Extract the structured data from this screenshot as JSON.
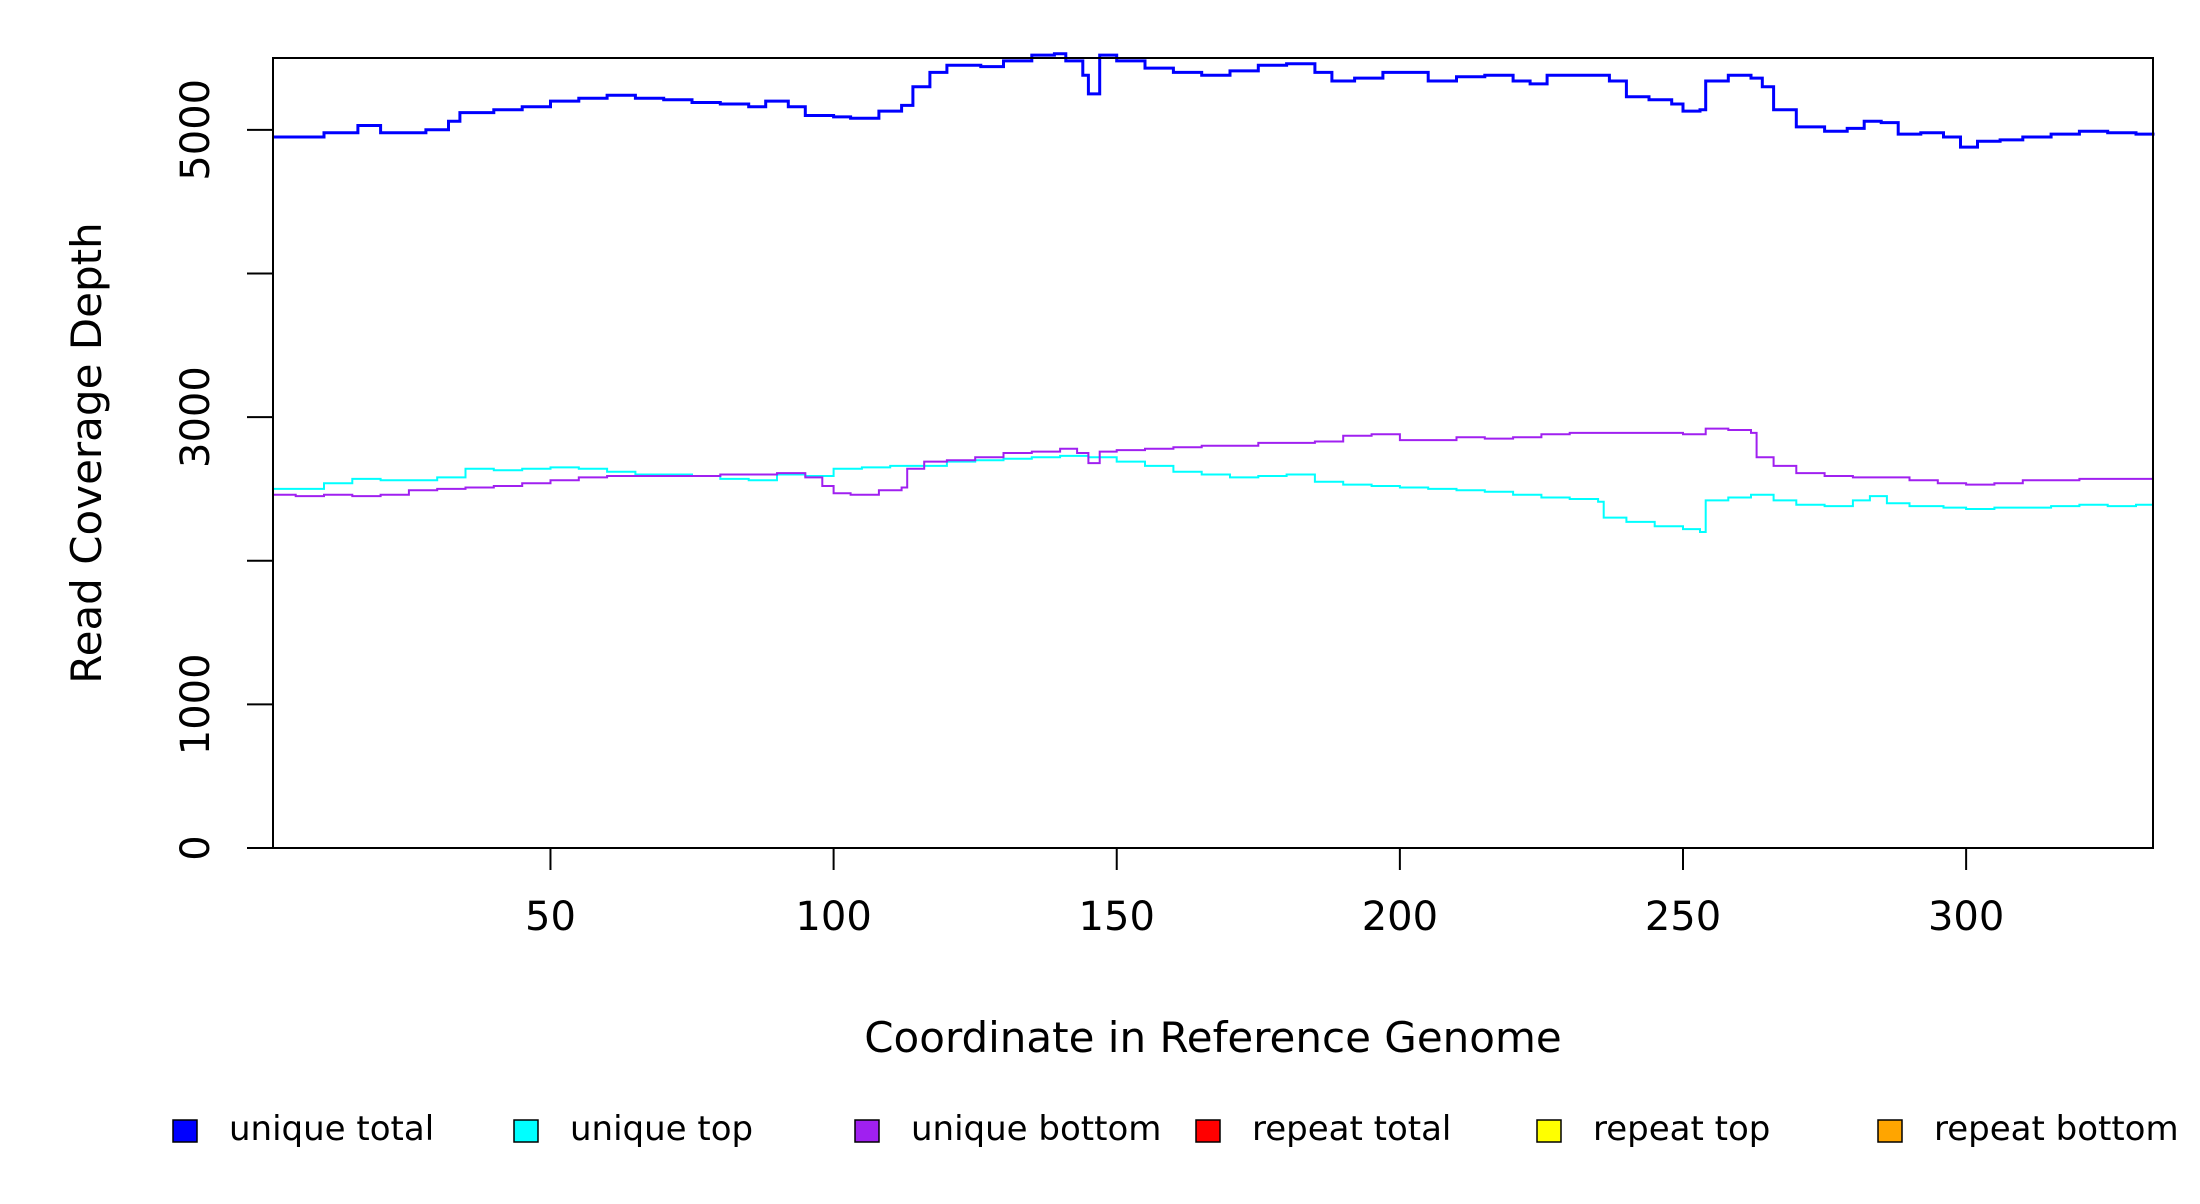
{
  "chart_data": {
    "type": "line",
    "title": "",
    "xlabel": "Coordinate in Reference Genome",
    "ylabel": "Read Coverage Depth",
    "xlim": [
      1,
      333
    ],
    "ylim": [
      0,
      5500
    ],
    "x_ticks": [
      50,
      100,
      150,
      200,
      250,
      300
    ],
    "y_ticks": [
      0,
      1000,
      2000,
      3000,
      4000,
      5000
    ],
    "y_tick_labels": [
      "0",
      "1000",
      "",
      "3000",
      "",
      "5000"
    ],
    "grid": false,
    "legend_position": "bottom",
    "series": [
      {
        "name": "unique total",
        "color": "#0000ff",
        "points": [
          [
            1,
            4950
          ],
          [
            10,
            4980
          ],
          [
            16,
            5030
          ],
          [
            20,
            4980
          ],
          [
            28,
            5000
          ],
          [
            32,
            5060
          ],
          [
            34,
            5120
          ],
          [
            40,
            5140
          ],
          [
            45,
            5160
          ],
          [
            50,
            5200
          ],
          [
            55,
            5220
          ],
          [
            60,
            5240
          ],
          [
            65,
            5220
          ],
          [
            70,
            5210
          ],
          [
            75,
            5190
          ],
          [
            80,
            5180
          ],
          [
            85,
            5160
          ],
          [
            88,
            5200
          ],
          [
            92,
            5160
          ],
          [
            95,
            5100
          ],
          [
            100,
            5090
          ],
          [
            103,
            5080
          ],
          [
            108,
            5130
          ],
          [
            112,
            5170
          ],
          [
            114,
            5300
          ],
          [
            117,
            5400
          ],
          [
            120,
            5450
          ],
          [
            126,
            5440
          ],
          [
            130,
            5480
          ],
          [
            135,
            5520
          ],
          [
            139,
            5530
          ],
          [
            141,
            5480
          ],
          [
            144,
            5380
          ],
          [
            145,
            5250
          ],
          [
            147,
            5520
          ],
          [
            150,
            5480
          ],
          [
            155,
            5430
          ],
          [
            160,
            5400
          ],
          [
            165,
            5380
          ],
          [
            170,
            5410
          ],
          [
            175,
            5450
          ],
          [
            180,
            5460
          ],
          [
            185,
            5400
          ],
          [
            188,
            5340
          ],
          [
            192,
            5360
          ],
          [
            197,
            5400
          ],
          [
            202,
            5400
          ],
          [
            205,
            5340
          ],
          [
            210,
            5370
          ],
          [
            215,
            5380
          ],
          [
            220,
            5340
          ],
          [
            223,
            5320
          ],
          [
            226,
            5380
          ],
          [
            230,
            5380
          ],
          [
            237,
            5340
          ],
          [
            240,
            5230
          ],
          [
            244,
            5210
          ],
          [
            248,
            5180
          ],
          [
            250,
            5130
          ],
          [
            253,
            5140
          ],
          [
            254,
            5340
          ],
          [
            258,
            5380
          ],
          [
            262,
            5360
          ],
          [
            264,
            5300
          ],
          [
            266,
            5140
          ],
          [
            270,
            5020
          ],
          [
            275,
            4990
          ],
          [
            277,
            4990
          ],
          [
            279,
            5010
          ],
          [
            282,
            5060
          ],
          [
            285,
            5050
          ],
          [
            288,
            4970
          ],
          [
            292,
            4980
          ],
          [
            296,
            4950
          ],
          [
            299,
            4880
          ],
          [
            302,
            4920
          ],
          [
            306,
            4930
          ],
          [
            310,
            4950
          ],
          [
            315,
            4970
          ],
          [
            320,
            4990
          ],
          [
            325,
            4980
          ],
          [
            330,
            4970
          ],
          [
            333,
            4960
          ]
        ]
      },
      {
        "name": "unique top",
        "color": "#00ffff",
        "points": [
          [
            1,
            2500
          ],
          [
            10,
            2540
          ],
          [
            15,
            2570
          ],
          [
            20,
            2560
          ],
          [
            30,
            2580
          ],
          [
            35,
            2640
          ],
          [
            40,
            2630
          ],
          [
            45,
            2640
          ],
          [
            50,
            2650
          ],
          [
            55,
            2640
          ],
          [
            60,
            2620
          ],
          [
            65,
            2600
          ],
          [
            70,
            2600
          ],
          [
            75,
            2590
          ],
          [
            80,
            2570
          ],
          [
            85,
            2560
          ],
          [
            90,
            2600
          ],
          [
            95,
            2590
          ],
          [
            100,
            2640
          ],
          [
            105,
            2650
          ],
          [
            110,
            2660
          ],
          [
            115,
            2660
          ],
          [
            120,
            2690
          ],
          [
            125,
            2700
          ],
          [
            130,
            2710
          ],
          [
            135,
            2720
          ],
          [
            140,
            2730
          ],
          [
            145,
            2720
          ],
          [
            150,
            2690
          ],
          [
            155,
            2660
          ],
          [
            160,
            2620
          ],
          [
            165,
            2600
          ],
          [
            170,
            2580
          ],
          [
            175,
            2590
          ],
          [
            180,
            2600
          ],
          [
            185,
            2550
          ],
          [
            190,
            2530
          ],
          [
            195,
            2520
          ],
          [
            200,
            2510
          ],
          [
            205,
            2500
          ],
          [
            210,
            2490
          ],
          [
            215,
            2480
          ],
          [
            220,
            2460
          ],
          [
            225,
            2440
          ],
          [
            230,
            2430
          ],
          [
            235,
            2410
          ],
          [
            236,
            2300
          ],
          [
            240,
            2270
          ],
          [
            245,
            2240
          ],
          [
            250,
            2220
          ],
          [
            253,
            2200
          ],
          [
            254,
            2420
          ],
          [
            258,
            2440
          ],
          [
            262,
            2460
          ],
          [
            266,
            2420
          ],
          [
            270,
            2390
          ],
          [
            275,
            2380
          ],
          [
            280,
            2420
          ],
          [
            283,
            2450
          ],
          [
            286,
            2400
          ],
          [
            290,
            2380
          ],
          [
            296,
            2370
          ],
          [
            300,
            2360
          ],
          [
            305,
            2370
          ],
          [
            310,
            2370
          ],
          [
            315,
            2380
          ],
          [
            320,
            2390
          ],
          [
            325,
            2380
          ],
          [
            330,
            2390
          ],
          [
            333,
            2390
          ]
        ]
      },
      {
        "name": "unique bottom",
        "color": "#a020f0",
        "points": [
          [
            1,
            2460
          ],
          [
            5,
            2450
          ],
          [
            10,
            2460
          ],
          [
            15,
            2450
          ],
          [
            20,
            2460
          ],
          [
            25,
            2490
          ],
          [
            30,
            2500
          ],
          [
            35,
            2510
          ],
          [
            40,
            2520
          ],
          [
            45,
            2540
          ],
          [
            50,
            2560
          ],
          [
            55,
            2580
          ],
          [
            60,
            2590
          ],
          [
            65,
            2590
          ],
          [
            70,
            2590
          ],
          [
            75,
            2590
          ],
          [
            80,
            2600
          ],
          [
            85,
            2600
          ],
          [
            90,
            2610
          ],
          [
            95,
            2580
          ],
          [
            98,
            2520
          ],
          [
            100,
            2470
          ],
          [
            103,
            2460
          ],
          [
            108,
            2490
          ],
          [
            112,
            2510
          ],
          [
            113,
            2640
          ],
          [
            116,
            2690
          ],
          [
            120,
            2700
          ],
          [
            125,
            2720
          ],
          [
            130,
            2750
          ],
          [
            135,
            2760
          ],
          [
            140,
            2780
          ],
          [
            143,
            2750
          ],
          [
            145,
            2680
          ],
          [
            147,
            2760
          ],
          [
            150,
            2770
          ],
          [
            155,
            2780
          ],
          [
            160,
            2790
          ],
          [
            165,
            2800
          ],
          [
            170,
            2800
          ],
          [
            175,
            2820
          ],
          [
            180,
            2820
          ],
          [
            185,
            2830
          ],
          [
            190,
            2870
          ],
          [
            195,
            2880
          ],
          [
            200,
            2840
          ],
          [
            205,
            2840
          ],
          [
            210,
            2860
          ],
          [
            215,
            2850
          ],
          [
            220,
            2860
          ],
          [
            225,
            2880
          ],
          [
            230,
            2890
          ],
          [
            235,
            2890
          ],
          [
            240,
            2890
          ],
          [
            245,
            2890
          ],
          [
            250,
            2880
          ],
          [
            254,
            2920
          ],
          [
            258,
            2910
          ],
          [
            262,
            2890
          ],
          [
            263,
            2720
          ],
          [
            266,
            2660
          ],
          [
            270,
            2610
          ],
          [
            275,
            2590
          ],
          [
            280,
            2580
          ],
          [
            285,
            2580
          ],
          [
            290,
            2560
          ],
          [
            295,
            2540
          ],
          [
            300,
            2530
          ],
          [
            305,
            2540
          ],
          [
            310,
            2560
          ],
          [
            315,
            2560
          ],
          [
            320,
            2570
          ],
          [
            325,
            2570
          ],
          [
            330,
            2570
          ],
          [
            333,
            2570
          ]
        ]
      },
      {
        "name": "repeat total",
        "color": "#ff0000",
        "points": [
          [
            1,
            0
          ],
          [
            333,
            0
          ]
        ]
      },
      {
        "name": "repeat top",
        "color": "#ffff00",
        "points": [
          [
            1,
            0
          ],
          [
            333,
            0
          ]
        ]
      },
      {
        "name": "repeat bottom",
        "color": "#ffa500",
        "points": [
          [
            1,
            0
          ],
          [
            333,
            0
          ]
        ]
      }
    ]
  }
}
